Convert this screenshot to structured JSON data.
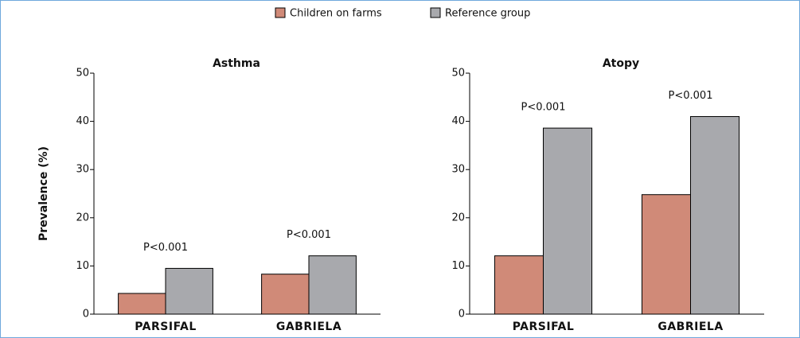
{
  "chart_data": [
    {
      "type": "bar",
      "title": "Asthma",
      "y_label": "Prevalence (%)",
      "categories": [
        "PARSIFAL",
        "GABRIELA"
      ],
      "series": [
        {
          "name": "Children on farms",
          "color": "#d08a78",
          "values": [
            4.3,
            8.3
          ]
        },
        {
          "name": "Reference group",
          "color": "#a8a9ad",
          "values": [
            9.5,
            12.1
          ]
        }
      ],
      "annotations": [
        "P<0.001",
        "P<0.001"
      ],
      "ylim": [
        0,
        50
      ],
      "yticks": [
        0,
        10,
        20,
        30,
        40,
        50
      ]
    },
    {
      "type": "bar",
      "title": "Atopy",
      "categories": [
        "PARSIFAL",
        "GABRIELA"
      ],
      "series": [
        {
          "name": "Children on farms",
          "color": "#d08a78",
          "values": [
            12.1,
            24.8
          ]
        },
        {
          "name": "Reference group",
          "color": "#a8a9ad",
          "values": [
            38.6,
            41.0
          ]
        }
      ],
      "annotations": [
        "P<0.001",
        "P<0.001"
      ],
      "ylim": [
        0,
        50
      ],
      "yticks": [
        0,
        10,
        20,
        30,
        40,
        50
      ]
    }
  ]
}
